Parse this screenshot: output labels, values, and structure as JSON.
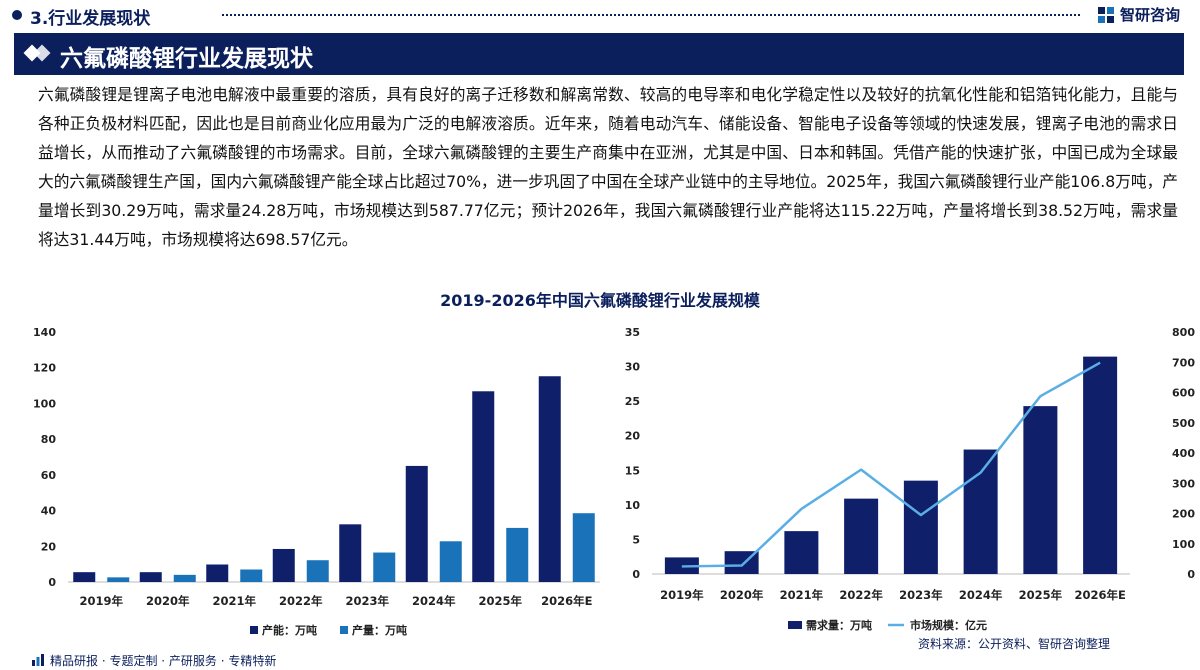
{
  "header": {
    "section": "3.行业发展现状",
    "brand": "智研咨询",
    "title": "六氟磷酸锂行业发展现状"
  },
  "paragraph": "六氟磷酸锂是锂离子电池电解液中最重要的溶质，具有良好的离子迁移数和解离常数、较高的电导率和电化学稳定性以及较好的抗氧化性能和铝箔钝化能力，且能与各种正负极材料匹配，因此也是目前商业化应用最为广泛的电解液溶质。近年来，随着电动汽车、储能设备、智能电子设备等领域的快速发展，锂离子电池的需求日益增长，从而推动了六氟磷酸锂的市场需求。目前，全球六氟磷酸锂的主要生产商集中在亚洲，尤其是中国、日本和韩国。凭借产能的快速扩张，中国已成为全球最大的六氟磷酸锂生产国，国内六氟磷酸锂产能全球占比超过70%，进一步巩固了中国在全球产业链中的主导地位。2025年，我国六氟磷酸锂行业产能106.8万吨，产量增长到30.29万吨，需求量24.28万吨，市场规模达到587.77亿元；预计2026年，我国六氟磷酸锂行业产能将达115.22万吨，产量将增长到38.52万吨，需求量将达31.44万吨，市场规模将达698.57亿元。",
  "chart_title": "2019-2026年中国六氟磷酸锂行业发展规模",
  "chart_data": [
    {
      "type": "bar",
      "categories": [
        "2019年",
        "2020年",
        "2021年",
        "2022年",
        "2023年",
        "2024年",
        "2025年",
        "2026年E"
      ],
      "series": [
        {
          "name": "产能：万吨",
          "values": [
            5.5,
            5.5,
            9.8,
            18.5,
            32.3,
            65.0,
            106.8,
            115.22
          ],
          "color": "#0f1f6a"
        },
        {
          "name": "产量：万吨",
          "values": [
            2.6,
            4.0,
            7.0,
            12.2,
            16.5,
            22.8,
            30.29,
            38.52
          ],
          "color": "#1a73b8"
        }
      ],
      "y_ticks": [
        "0",
        "20",
        "40",
        "60",
        "80",
        "100",
        "120",
        "140"
      ],
      "ylim": [
        0,
        140
      ],
      "legend_position": "bottom",
      "grid": false
    },
    {
      "type": "bar+line",
      "categories": [
        "2019年",
        "2020年",
        "2021年",
        "2022年",
        "2023年",
        "2024年",
        "2025年",
        "2026年E"
      ],
      "series": [
        {
          "name": "需求量：万吨",
          "type": "bar",
          "axis": "left",
          "values": [
            2.4,
            3.3,
            6.2,
            10.9,
            13.5,
            18.0,
            24.28,
            31.44
          ],
          "color": "#0f1f6a"
        },
        {
          "name": "市场规模：亿元",
          "type": "line",
          "axis": "right",
          "values": [
            25,
            28,
            215,
            345,
            195,
            335,
            587.77,
            698.57
          ],
          "color": "#5aaee6"
        }
      ],
      "y_left_ticks": [
        "0",
        "5",
        "10",
        "15",
        "20",
        "25",
        "30",
        "35"
      ],
      "y_right_ticks": [
        "0",
        "100",
        "200",
        "300",
        "400",
        "500",
        "600",
        "700",
        "800"
      ],
      "ylim_left": [
        0,
        35
      ],
      "ylim_right": [
        0,
        800
      ],
      "legend_position": "bottom",
      "grid": false
    }
  ],
  "footer": {
    "source": "资料来源：公开资料、智研咨询整理",
    "tagline": "精品研报 · 专题定制 · 产研服务 · 专精特新"
  }
}
